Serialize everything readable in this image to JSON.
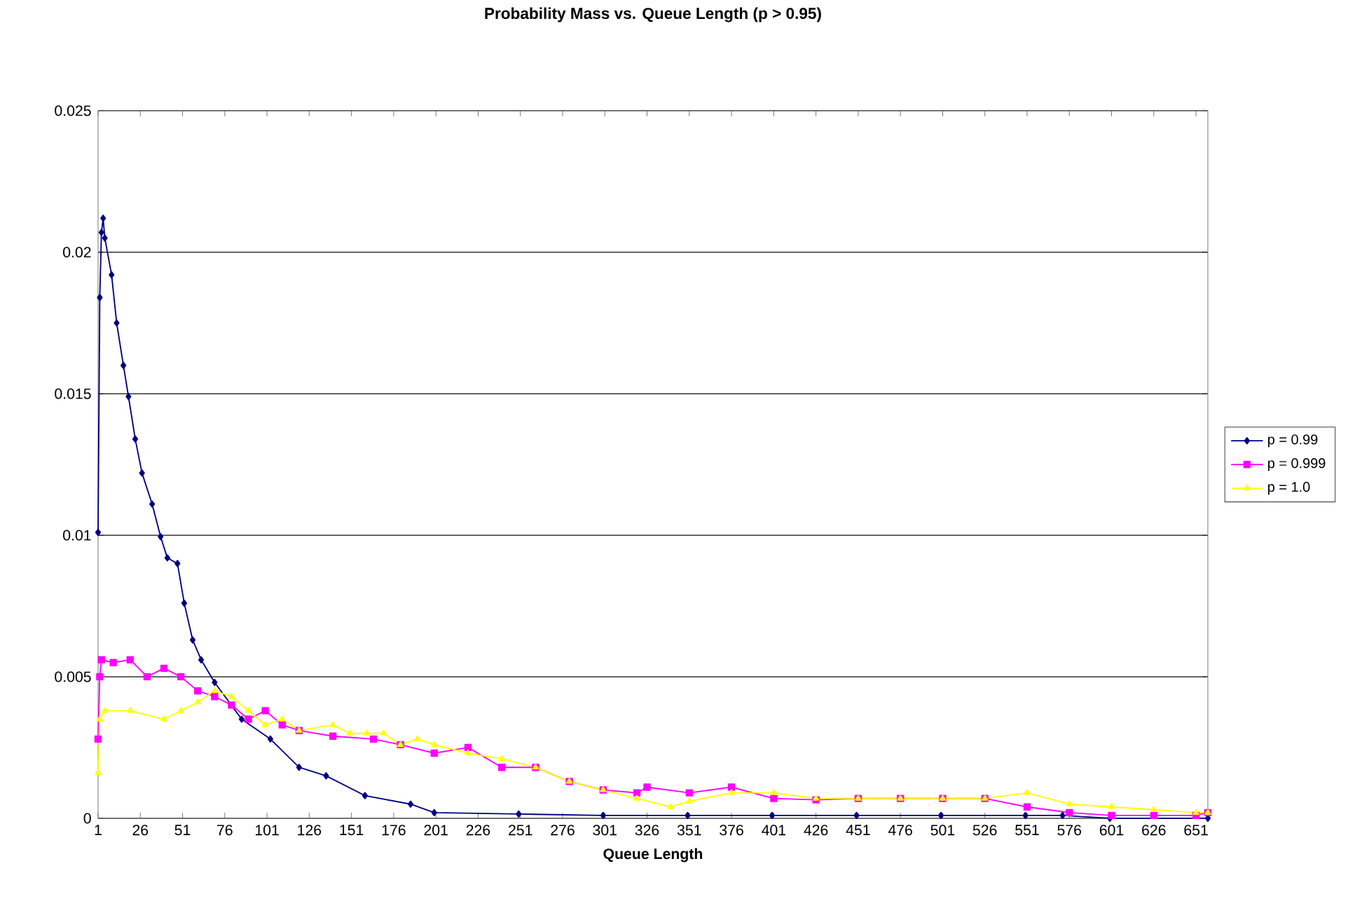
{
  "chart_data": {
    "type": "line",
    "title": "Probability Mass vs. Queue Length (p > 0.95)",
    "xlabel": "Queue Length",
    "xlim": [
      1,
      658
    ],
    "ylim": [
      0,
      0.025
    ],
    "xticks": [
      1,
      26,
      51,
      76,
      101,
      126,
      151,
      176,
      201,
      226,
      251,
      276,
      301,
      326,
      351,
      376,
      401,
      426,
      451,
      476,
      501,
      526,
      551,
      576,
      601,
      626,
      651
    ],
    "yticks": [
      0,
      0.005,
      0.01,
      0.015,
      0.02,
      0.025
    ],
    "grid": "y",
    "legend": "right",
    "series": [
      {
        "name": "p = 0.99",
        "color": "#000080",
        "marker": "diamond",
        "x": [
          1,
          2,
          3,
          4,
          5,
          9,
          12,
          16,
          19,
          23,
          27,
          33,
          38,
          42,
          48,
          52,
          57,
          62,
          70,
          86,
          103,
          120,
          136,
          159,
          186,
          200,
          250,
          300,
          350,
          400,
          450,
          500,
          550,
          572,
          600,
          658
        ],
        "values": [
          0.0101,
          0.0184,
          0.0207,
          0.0212,
          0.0205,
          0.0192,
          0.0175,
          0.016,
          0.0149,
          0.0134,
          0.0122,
          0.0111,
          0.00995,
          0.0092,
          0.009,
          0.0076,
          0.0063,
          0.0056,
          0.0048,
          0.0035,
          0.0028,
          0.0018,
          0.0015,
          0.0008,
          0.0005,
          0.0002,
          0.00015,
          0.0001,
          0.0001,
          0.0001,
          0.0001,
          0.0001,
          0.0001,
          0.0001,
          0,
          0
        ]
      },
      {
        "name": "p = 0.999",
        "color": "#ff00ff",
        "marker": "square",
        "x": [
          1,
          2,
          3,
          10,
          20,
          30,
          40,
          50,
          60,
          70,
          80,
          90,
          100,
          110,
          120,
          140,
          164,
          180,
          200,
          220,
          240,
          260,
          280,
          300,
          320,
          326,
          351,
          376,
          401,
          426,
          451,
          476,
          501,
          526,
          551,
          576,
          601,
          626,
          651,
          658
        ],
        "values": [
          0.0028,
          0.005,
          0.0056,
          0.0055,
          0.0056,
          0.005,
          0.0053,
          0.005,
          0.0045,
          0.0043,
          0.004,
          0.0035,
          0.0038,
          0.0033,
          0.0031,
          0.0029,
          0.0028,
          0.0026,
          0.0023,
          0.0025,
          0.0018,
          0.0018,
          0.0013,
          0.001,
          0.0009,
          0.0011,
          0.0009,
          0.0011,
          0.0007,
          0.00065,
          0.0007,
          0.0007,
          0.0007,
          0.0007,
          0.0004,
          0.0002,
          0.0001,
          0.0001,
          0.0001,
          0.0002
        ]
      },
      {
        "name": "p = 1.0",
        "color": "#ffff00",
        "marker": "triangle",
        "x": [
          1,
          2,
          5,
          20,
          40,
          50,
          60,
          70,
          80,
          90,
          100,
          110,
          120,
          140,
          150,
          160,
          170,
          180,
          190,
          200,
          220,
          240,
          260,
          280,
          300,
          320,
          340,
          351,
          376,
          401,
          426,
          451,
          476,
          501,
          526,
          551,
          576,
          601,
          626,
          651,
          658
        ],
        "values": [
          0.0016,
          0.0035,
          0.0038,
          0.0038,
          0.0035,
          0.0038,
          0.0041,
          0.0045,
          0.0043,
          0.0038,
          0.0033,
          0.0035,
          0.0031,
          0.0033,
          0.003,
          0.003,
          0.003,
          0.0026,
          0.0028,
          0.0026,
          0.0023,
          0.0021,
          0.0018,
          0.0013,
          0.001,
          0.0007,
          0.0004,
          0.0006,
          0.0009,
          0.0009,
          0.0007,
          0.0007,
          0.0007,
          0.0007,
          0.0007,
          0.0009,
          0.0005,
          0.0004,
          0.0003,
          0.0002,
          0.0002
        ]
      }
    ]
  }
}
